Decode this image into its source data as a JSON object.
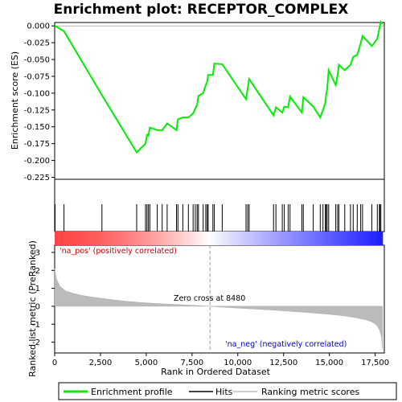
{
  "chart_data": {
    "type": "line",
    "title": "Enrichment plot: RECEPTOR_COMPLEX",
    "xlabel": "Rank in Ordered Dataset",
    "ylabel_top": "Enrichment score (ES)",
    "ylabel_bottom": "Ranked list metric (PreRanked)",
    "x_ticks": [
      "0",
      "2,500",
      "5,000",
      "7,500",
      "10,000",
      "12,500",
      "15,000",
      "17,500"
    ],
    "x_tick_values": [
      0,
      2500,
      5000,
      7500,
      10000,
      12500,
      15000,
      17500
    ],
    "xlim": [
      0,
      18000
    ],
    "es_yticks": [
      "0.000",
      "-0.025",
      "-0.050",
      "-0.075",
      "-0.100",
      "-0.125",
      "-0.150",
      "-0.175",
      "-0.200",
      "-0.225"
    ],
    "es_ytick_values": [
      0,
      -0.025,
      -0.05,
      -0.075,
      -0.1,
      -0.125,
      -0.15,
      -0.175,
      -0.2,
      -0.225
    ],
    "es_ylim": [
      -0.228,
      0.005
    ],
    "metric_yticks": [
      "3",
      "2",
      "1",
      "0",
      "-1",
      "-2"
    ],
    "metric_ytick_values": [
      3,
      2,
      1,
      0,
      -1,
      -2
    ],
    "metric_ylim": [
      -2.6,
      3.4
    ],
    "zero_cross_label": "Zero cross at 8480",
    "zero_cross": 8480,
    "pos_label": "'na_pos' (positively correlated)",
    "neg_label": "'na_neg' (negatively correlated)",
    "legend": [
      "Enrichment profile",
      "Hits",
      "Ranking metric scores"
    ],
    "colors": {
      "es": "#00ee00",
      "hits": "#000000",
      "metric": "#bbbbbb",
      "pos_text": "#cc0000",
      "neg_text": "#0000cc"
    },
    "hits": [
      20,
      510,
      2580,
      4480,
      4960,
      5040,
      5120,
      5200,
      5600,
      5870,
      6140,
      6650,
      6730,
      7000,
      7300,
      7560,
      7680,
      7780,
      7850,
      8110,
      8250,
      8330,
      8380,
      8640,
      8720,
      9150,
      10450,
      10540,
      10620,
      11950,
      12080,
      12430,
      12540,
      12750,
      12850,
      13500,
      13580,
      14120,
      14500,
      14650,
      14780,
      14820,
      14880,
      14960,
      15350,
      15450,
      15520,
      15840,
      16150,
      16300,
      16520,
      16710,
      16810,
      17320,
      17620,
      17730,
      17760,
      17810
    ],
    "series": [
      {
        "name": "Enrichment profile",
        "x": [
          0,
          20,
          510,
          2580,
          4480,
          4960,
          5040,
          5120,
          5200,
          5600,
          5870,
          6140,
          6650,
          6730,
          7000,
          7300,
          7560,
          7680,
          7780,
          7850,
          8110,
          8250,
          8330,
          8380,
          8640,
          8720,
          9150,
          10450,
          10540,
          10620,
          11950,
          12080,
          12430,
          12540,
          12750,
          12850,
          13500,
          13580,
          14120,
          14500,
          14650,
          14780,
          14820,
          14880,
          14960,
          15350,
          15450,
          15520,
          15840,
          16150,
          16300,
          16520,
          16710,
          16810,
          17320,
          17620,
          17730,
          17760,
          17810,
          17900
        ],
        "y": [
          0.0,
          0.0,
          -0.008,
          -0.103,
          -0.188,
          -0.175,
          -0.162,
          -0.163,
          -0.151,
          -0.155,
          -0.155,
          -0.145,
          -0.155,
          -0.139,
          -0.136,
          -0.136,
          -0.13,
          -0.123,
          -0.117,
          -0.104,
          -0.1,
          -0.088,
          -0.083,
          -0.073,
          -0.073,
          -0.056,
          -0.057,
          -0.109,
          -0.093,
          -0.079,
          -0.133,
          -0.121,
          -0.129,
          -0.12,
          -0.121,
          -0.105,
          -0.129,
          -0.106,
          -0.12,
          -0.136,
          -0.125,
          -0.114,
          -0.103,
          -0.094,
          -0.066,
          -0.088,
          -0.073,
          -0.058,
          -0.066,
          -0.058,
          -0.046,
          -0.043,
          -0.026,
          -0.015,
          -0.03,
          -0.019,
          -0.004,
          0.0,
          0.006,
          0.003
        ]
      },
      {
        "name": "Ranking metric scores",
        "x": [
          0,
          100,
          300,
          600,
          1000,
          1500,
          2000,
          2500,
          3000,
          4000,
          5000,
          6000,
          7000,
          8000,
          8480,
          9000,
          10000,
          11000,
          12000,
          13000,
          14000,
          15000,
          15500,
          16000,
          16500,
          17000,
          17300,
          17500,
          17650,
          17750,
          17850,
          17900
        ],
        "y": [
          2.1,
          1.5,
          1.1,
          0.85,
          0.72,
          0.6,
          0.52,
          0.45,
          0.38,
          0.27,
          0.19,
          0.13,
          0.08,
          0.03,
          0.0,
          -0.04,
          -0.1,
          -0.16,
          -0.22,
          -0.29,
          -0.36,
          -0.45,
          -0.5,
          -0.56,
          -0.65,
          -0.76,
          -0.86,
          -0.98,
          -1.15,
          -1.35,
          -1.7,
          -2.4
        ]
      }
    ]
  }
}
